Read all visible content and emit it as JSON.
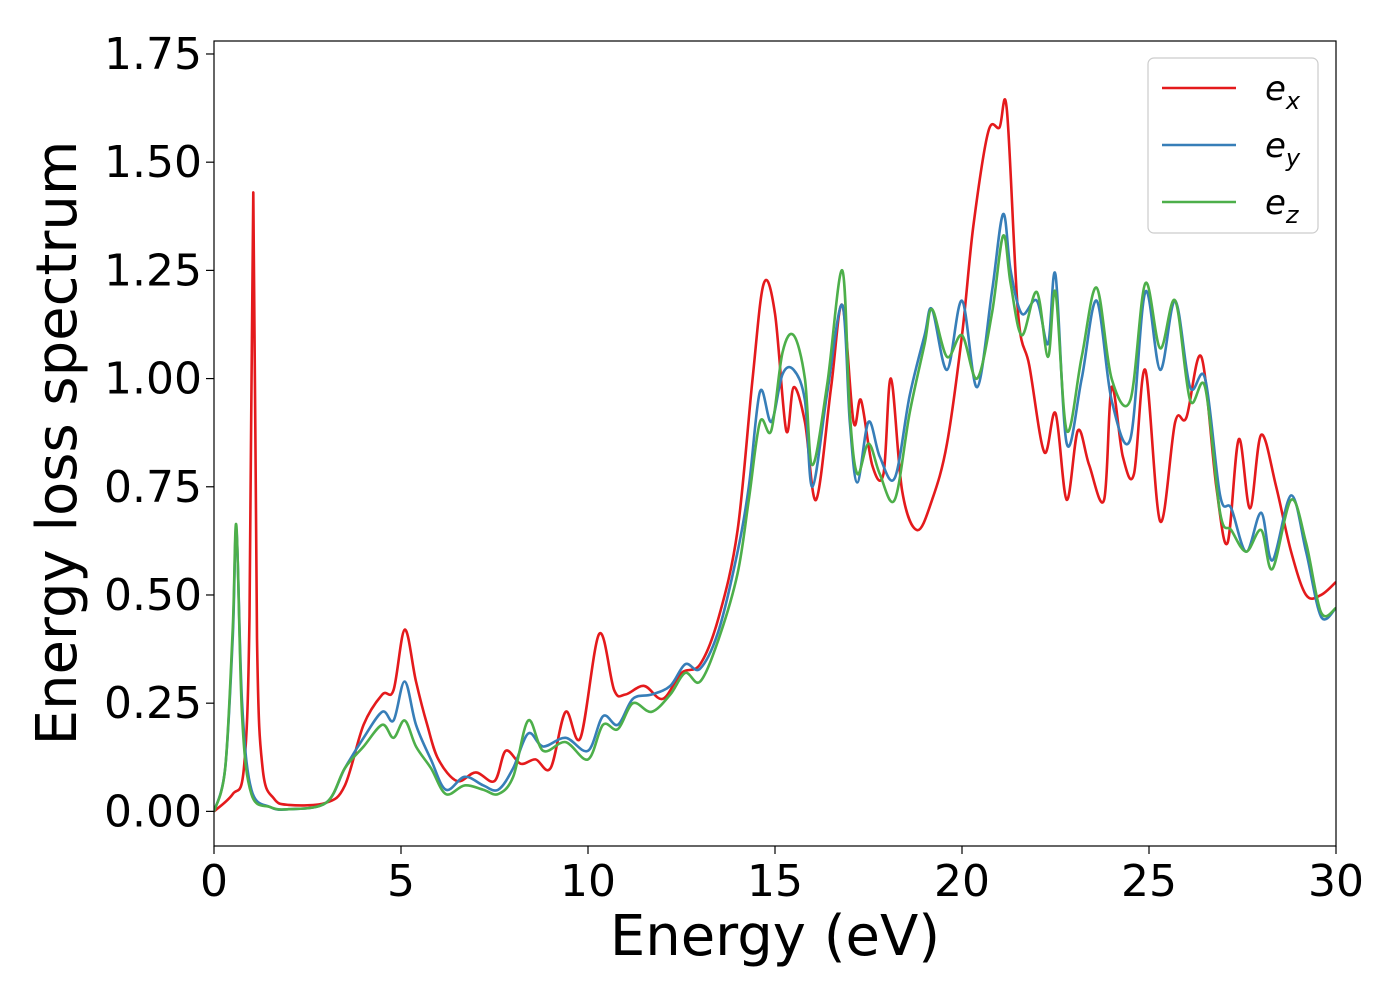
{
  "chart_data": {
    "type": "line",
    "title": "",
    "xlabel": "Energy (eV)",
    "ylabel": "Energy loss spectrum",
    "xlim": [
      0,
      30
    ],
    "ylim": [
      -0.08,
      1.78
    ],
    "xticks": [
      0,
      5,
      10,
      15,
      20,
      25,
      30
    ],
    "xtick_labels": [
      "0",
      "5",
      "10",
      "15",
      "20",
      "25",
      "30"
    ],
    "yticks": [
      0.0,
      0.25,
      0.5,
      0.75,
      1.0,
      1.25,
      1.5,
      1.75
    ],
    "ytick_labels": [
      "0.00",
      "0.25",
      "0.50",
      "0.75",
      "1.00",
      "1.25",
      "1.50",
      "1.75"
    ],
    "grid": false,
    "legend_position": "top-right",
    "series": [
      {
        "name": "e_x",
        "legend_base": "e",
        "legend_sub": "x",
        "color": "#e41a1c",
        "points": [
          [
            0.0,
            0.0
          ],
          [
            0.5,
            0.04
          ],
          [
            0.8,
            0.1
          ],
          [
            0.95,
            0.45
          ],
          [
            1.05,
            1.43
          ],
          [
            1.15,
            0.4
          ],
          [
            1.3,
            0.1
          ],
          [
            1.6,
            0.03
          ],
          [
            2.0,
            0.015
          ],
          [
            3.0,
            0.02
          ],
          [
            3.5,
            0.06
          ],
          [
            4.0,
            0.2
          ],
          [
            4.5,
            0.27
          ],
          [
            4.8,
            0.28
          ],
          [
            5.1,
            0.42
          ],
          [
            5.4,
            0.3
          ],
          [
            5.7,
            0.2
          ],
          [
            6.0,
            0.12
          ],
          [
            6.5,
            0.07
          ],
          [
            7.0,
            0.09
          ],
          [
            7.5,
            0.07
          ],
          [
            7.8,
            0.14
          ],
          [
            8.2,
            0.11
          ],
          [
            8.6,
            0.12
          ],
          [
            9.0,
            0.1
          ],
          [
            9.4,
            0.23
          ],
          [
            9.8,
            0.17
          ],
          [
            10.3,
            0.41
          ],
          [
            10.7,
            0.28
          ],
          [
            11.0,
            0.27
          ],
          [
            11.5,
            0.29
          ],
          [
            12.0,
            0.26
          ],
          [
            12.5,
            0.32
          ],
          [
            13.0,
            0.34
          ],
          [
            13.5,
            0.45
          ],
          [
            14.0,
            0.65
          ],
          [
            14.4,
            1.0
          ],
          [
            14.7,
            1.22
          ],
          [
            15.0,
            1.15
          ],
          [
            15.3,
            0.88
          ],
          [
            15.5,
            0.98
          ],
          [
            15.8,
            0.9
          ],
          [
            16.1,
            0.72
          ],
          [
            16.5,
            0.98
          ],
          [
            16.8,
            1.17
          ],
          [
            17.1,
            0.9
          ],
          [
            17.3,
            0.95
          ],
          [
            17.6,
            0.8
          ],
          [
            17.9,
            0.78
          ],
          [
            18.1,
            1.0
          ],
          [
            18.4,
            0.74
          ],
          [
            18.8,
            0.65
          ],
          [
            19.2,
            0.72
          ],
          [
            19.6,
            0.85
          ],
          [
            20.0,
            1.1
          ],
          [
            20.3,
            1.35
          ],
          [
            20.7,
            1.57
          ],
          [
            21.0,
            1.58
          ],
          [
            21.2,
            1.62
          ],
          [
            21.5,
            1.15
          ],
          [
            21.8,
            1.03
          ],
          [
            22.2,
            0.83
          ],
          [
            22.5,
            0.92
          ],
          [
            22.8,
            0.72
          ],
          [
            23.1,
            0.88
          ],
          [
            23.4,
            0.8
          ],
          [
            23.8,
            0.72
          ],
          [
            24.0,
            0.98
          ],
          [
            24.3,
            0.82
          ],
          [
            24.6,
            0.78
          ],
          [
            24.9,
            1.02
          ],
          [
            25.3,
            0.67
          ],
          [
            25.7,
            0.9
          ],
          [
            26.0,
            0.91
          ],
          [
            26.4,
            1.05
          ],
          [
            26.8,
            0.75
          ],
          [
            27.1,
            0.62
          ],
          [
            27.4,
            0.86
          ],
          [
            27.7,
            0.7
          ],
          [
            28.0,
            0.87
          ],
          [
            28.4,
            0.75
          ],
          [
            28.8,
            0.6
          ],
          [
            29.2,
            0.5
          ],
          [
            29.6,
            0.5
          ],
          [
            30.0,
            0.53
          ]
        ]
      },
      {
        "name": "e_y",
        "legend_base": "e",
        "legend_sub": "y",
        "color": "#377eb8",
        "points": [
          [
            0.0,
            0.0
          ],
          [
            0.3,
            0.1
          ],
          [
            0.5,
            0.4
          ],
          [
            0.6,
            0.65
          ],
          [
            0.75,
            0.25
          ],
          [
            1.0,
            0.05
          ],
          [
            1.5,
            0.01
          ],
          [
            2.0,
            0.005
          ],
          [
            3.0,
            0.02
          ],
          [
            3.5,
            0.1
          ],
          [
            4.0,
            0.17
          ],
          [
            4.5,
            0.23
          ],
          [
            4.8,
            0.21
          ],
          [
            5.1,
            0.3
          ],
          [
            5.4,
            0.2
          ],
          [
            5.8,
            0.12
          ],
          [
            6.2,
            0.05
          ],
          [
            6.7,
            0.08
          ],
          [
            7.2,
            0.06
          ],
          [
            7.6,
            0.05
          ],
          [
            8.0,
            0.1
          ],
          [
            8.4,
            0.18
          ],
          [
            8.8,
            0.15
          ],
          [
            9.4,
            0.17
          ],
          [
            10.0,
            0.14
          ],
          [
            10.4,
            0.22
          ],
          [
            10.8,
            0.2
          ],
          [
            11.2,
            0.26
          ],
          [
            11.7,
            0.27
          ],
          [
            12.2,
            0.29
          ],
          [
            12.6,
            0.34
          ],
          [
            13.0,
            0.33
          ],
          [
            13.5,
            0.42
          ],
          [
            14.0,
            0.6
          ],
          [
            14.3,
            0.75
          ],
          [
            14.6,
            0.97
          ],
          [
            14.9,
            0.9
          ],
          [
            15.2,
            1.01
          ],
          [
            15.5,
            1.02
          ],
          [
            15.8,
            0.95
          ],
          [
            16.0,
            0.75
          ],
          [
            16.4,
            0.97
          ],
          [
            16.8,
            1.17
          ],
          [
            17.0,
            0.9
          ],
          [
            17.2,
            0.76
          ],
          [
            17.5,
            0.9
          ],
          [
            17.8,
            0.82
          ],
          [
            18.2,
            0.77
          ],
          [
            18.6,
            0.96
          ],
          [
            19.0,
            1.1
          ],
          [
            19.2,
            1.16
          ],
          [
            19.6,
            1.02
          ],
          [
            20.0,
            1.18
          ],
          [
            20.4,
            0.98
          ],
          [
            20.8,
            1.2
          ],
          [
            21.1,
            1.38
          ],
          [
            21.3,
            1.25
          ],
          [
            21.6,
            1.15
          ],
          [
            22.0,
            1.18
          ],
          [
            22.3,
            1.08
          ],
          [
            22.5,
            1.24
          ],
          [
            22.8,
            0.85
          ],
          [
            23.2,
            1.0
          ],
          [
            23.6,
            1.18
          ],
          [
            24.0,
            0.95
          ],
          [
            24.5,
            0.86
          ],
          [
            24.9,
            1.2
          ],
          [
            25.3,
            1.02
          ],
          [
            25.7,
            1.18
          ],
          [
            26.1,
            0.98
          ],
          [
            26.5,
            1.0
          ],
          [
            26.9,
            0.73
          ],
          [
            27.2,
            0.7
          ],
          [
            27.6,
            0.6
          ],
          [
            28.0,
            0.69
          ],
          [
            28.3,
            0.58
          ],
          [
            28.8,
            0.73
          ],
          [
            29.2,
            0.6
          ],
          [
            29.6,
            0.45
          ],
          [
            30.0,
            0.47
          ]
        ]
      },
      {
        "name": "e_z",
        "legend_base": "e",
        "legend_sub": "z",
        "color": "#4daf4a",
        "points": [
          [
            0.0,
            0.0
          ],
          [
            0.3,
            0.1
          ],
          [
            0.5,
            0.42
          ],
          [
            0.6,
            0.66
          ],
          [
            0.75,
            0.22
          ],
          [
            1.0,
            0.04
          ],
          [
            1.5,
            0.01
          ],
          [
            2.0,
            0.005
          ],
          [
            3.0,
            0.02
          ],
          [
            3.5,
            0.1
          ],
          [
            4.0,
            0.15
          ],
          [
            4.5,
            0.2
          ],
          [
            4.8,
            0.17
          ],
          [
            5.1,
            0.21
          ],
          [
            5.4,
            0.15
          ],
          [
            5.8,
            0.1
          ],
          [
            6.2,
            0.04
          ],
          [
            6.7,
            0.06
          ],
          [
            7.2,
            0.05
          ],
          [
            7.6,
            0.04
          ],
          [
            8.0,
            0.08
          ],
          [
            8.4,
            0.21
          ],
          [
            8.8,
            0.14
          ],
          [
            9.4,
            0.16
          ],
          [
            10.0,
            0.12
          ],
          [
            10.4,
            0.2
          ],
          [
            10.8,
            0.19
          ],
          [
            11.2,
            0.25
          ],
          [
            11.7,
            0.23
          ],
          [
            12.2,
            0.27
          ],
          [
            12.6,
            0.32
          ],
          [
            13.0,
            0.3
          ],
          [
            13.5,
            0.4
          ],
          [
            14.0,
            0.55
          ],
          [
            14.3,
            0.72
          ],
          [
            14.6,
            0.9
          ],
          [
            14.9,
            0.88
          ],
          [
            15.2,
            1.06
          ],
          [
            15.5,
            1.1
          ],
          [
            15.8,
            1.0
          ],
          [
            16.0,
            0.8
          ],
          [
            16.4,
            0.99
          ],
          [
            16.8,
            1.25
          ],
          [
            17.0,
            0.92
          ],
          [
            17.2,
            0.78
          ],
          [
            17.5,
            0.85
          ],
          [
            17.8,
            0.78
          ],
          [
            18.2,
            0.72
          ],
          [
            18.6,
            0.92
          ],
          [
            19.0,
            1.08
          ],
          [
            19.2,
            1.16
          ],
          [
            19.6,
            1.05
          ],
          [
            20.0,
            1.1
          ],
          [
            20.4,
            1.0
          ],
          [
            20.8,
            1.15
          ],
          [
            21.1,
            1.33
          ],
          [
            21.3,
            1.22
          ],
          [
            21.6,
            1.1
          ],
          [
            22.0,
            1.2
          ],
          [
            22.3,
            1.05
          ],
          [
            22.5,
            1.2
          ],
          [
            22.8,
            0.88
          ],
          [
            23.2,
            1.05
          ],
          [
            23.6,
            1.21
          ],
          [
            24.0,
            1.0
          ],
          [
            24.5,
            0.95
          ],
          [
            24.9,
            1.22
          ],
          [
            25.3,
            1.07
          ],
          [
            25.7,
            1.18
          ],
          [
            26.1,
            0.95
          ],
          [
            26.5,
            0.98
          ],
          [
            26.9,
            0.69
          ],
          [
            27.2,
            0.65
          ],
          [
            27.6,
            0.6
          ],
          [
            28.0,
            0.65
          ],
          [
            28.3,
            0.56
          ],
          [
            28.8,
            0.72
          ],
          [
            29.2,
            0.62
          ],
          [
            29.6,
            0.46
          ],
          [
            30.0,
            0.47
          ]
        ]
      }
    ]
  }
}
